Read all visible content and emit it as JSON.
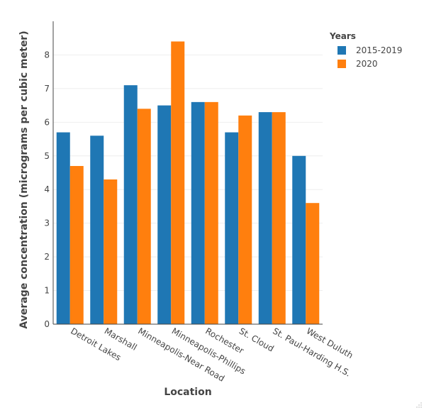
{
  "chart_data": {
    "type": "bar",
    "title": "",
    "xlabel": "Location",
    "ylabel": "Average concentration (micrograms per cubic meter)",
    "categories": [
      "Detroit Lakes",
      "Marshall",
      "Minneapolis-Near Road",
      "Minneapolis-Phillips",
      "Rochester",
      "St. Cloud",
      "St. Paul-Harding H.S.",
      "West Duluth"
    ],
    "series": [
      {
        "name": "2015-2019",
        "color": "#1f77b4",
        "values": [
          5.7,
          5.6,
          7.1,
          6.5,
          6.6,
          5.7,
          6.3,
          5.0
        ]
      },
      {
        "name": "2020",
        "color": "#ff7f0e",
        "values": [
          4.7,
          4.3,
          6.4,
          8.4,
          6.6,
          6.2,
          6.3,
          3.6
        ]
      }
    ],
    "ylim": [
      0,
      9
    ],
    "yticks": [
      0,
      1,
      2,
      3,
      4,
      5,
      6,
      7,
      8
    ],
    "grid": true,
    "legend": {
      "title": "Years",
      "placement": "top-right"
    }
  }
}
